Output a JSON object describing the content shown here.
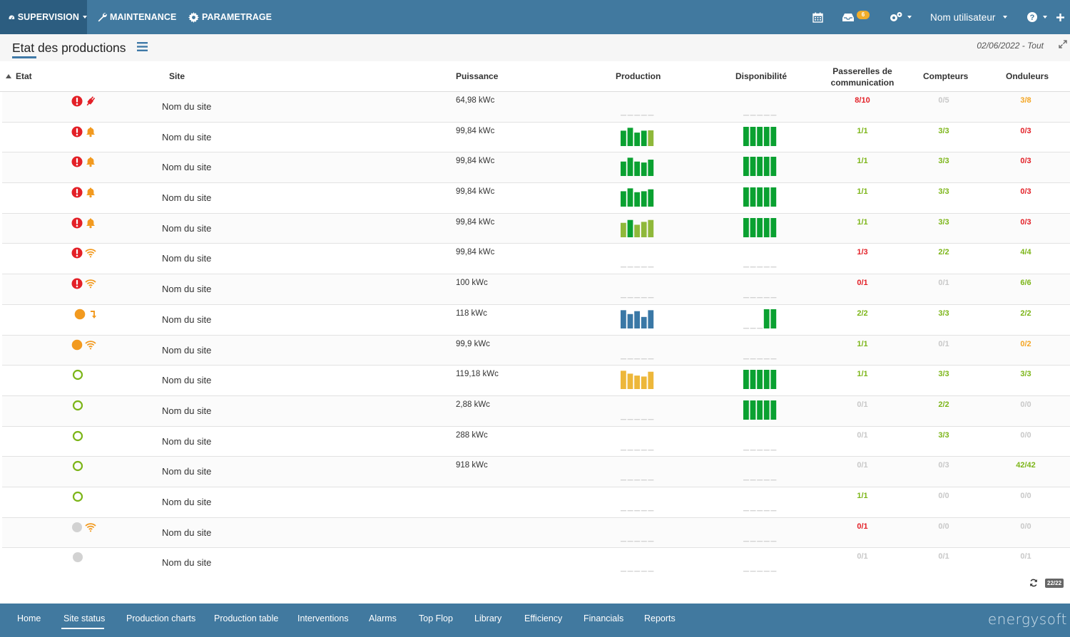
{
  "nav": {
    "supervision": "SUPERVISION",
    "maintenance": "MAINTENANCE",
    "parametrage": "PARAMETRAGE",
    "notif_count": "6",
    "username": "Nom utilisateur"
  },
  "header": {
    "title": "Etat des productions",
    "date_filter": "02/06/2022 - Tout"
  },
  "columns": {
    "etat": "Etat",
    "site": "Site",
    "puissance": "Puissance",
    "production": "Production",
    "disponibilite": "Disponibilité",
    "passerelles_l1": "Passerelles de",
    "passerelles_l2": "communication",
    "compteurs": "Compteurs",
    "onduleurs": "Onduleurs"
  },
  "colors": {
    "red": "#e32027",
    "orange": "#f29a1f",
    "green_text": "#7cb518",
    "grey_text": "#c8c8c8",
    "amber_text": "#f4a522",
    "bar_green": "#0aa131",
    "bar_olive": "#8fb83a",
    "bar_blue": "#3a78a6",
    "bar_yellow": "#edb73a"
  },
  "rows": [
    {
      "site": "Nom du site",
      "power": "64,98 kWc",
      "status": [
        "alert",
        "plug"
      ],
      "prod": null,
      "dispo": null,
      "passerelles": {
        "v": "8/10",
        "c": "red"
      },
      "compteurs": {
        "v": "0/5",
        "c": "grey"
      },
      "onduleurs": {
        "v": "3/8",
        "c": "amber"
      }
    },
    {
      "site": "Nom du site",
      "power": "99,84 kWc",
      "status": [
        "alert",
        "bell"
      ],
      "prod": {
        "v": [
          0.8,
          0.95,
          0.7,
          0.8,
          0.82
        ],
        "c": [
          "green",
          "green",
          "green",
          "green",
          "olive"
        ]
      },
      "dispo": {
        "v": [
          1,
          1,
          1,
          1,
          1
        ],
        "c": [
          "green",
          "green",
          "green",
          "green",
          "green"
        ]
      },
      "passerelles": {
        "v": "1/1",
        "c": "green"
      },
      "compteurs": {
        "v": "3/3",
        "c": "green"
      },
      "onduleurs": {
        "v": "0/3",
        "c": "red"
      }
    },
    {
      "site": "Nom du site",
      "power": "99,84 kWc",
      "status": [
        "alert",
        "bell"
      ],
      "prod": {
        "v": [
          0.75,
          0.95,
          0.75,
          0.7,
          0.85
        ],
        "c": [
          "green",
          "green",
          "green",
          "green",
          "green"
        ]
      },
      "dispo": {
        "v": [
          1,
          1,
          1,
          1,
          1
        ],
        "c": [
          "green",
          "green",
          "green",
          "green",
          "green"
        ]
      },
      "passerelles": {
        "v": "1/1",
        "c": "green"
      },
      "compteurs": {
        "v": "3/3",
        "c": "green"
      },
      "onduleurs": {
        "v": "0/3",
        "c": "red"
      }
    },
    {
      "site": "Nom du site",
      "power": "99,84 kWc",
      "status": [
        "alert",
        "bell"
      ],
      "prod": {
        "v": [
          0.8,
          0.95,
          0.75,
          0.8,
          0.9
        ],
        "c": [
          "green",
          "green",
          "green",
          "green",
          "green"
        ]
      },
      "dispo": {
        "v": [
          1,
          1,
          1,
          1,
          1
        ],
        "c": [
          "green",
          "green",
          "green",
          "green",
          "green"
        ]
      },
      "passerelles": {
        "v": "1/1",
        "c": "green"
      },
      "compteurs": {
        "v": "3/3",
        "c": "green"
      },
      "onduleurs": {
        "v": "0/3",
        "c": "red"
      }
    },
    {
      "site": "Nom du site",
      "power": "99,84 kWc",
      "status": [
        "alert",
        "bell"
      ],
      "prod": {
        "v": [
          0.75,
          0.9,
          0.65,
          0.8,
          0.9
        ],
        "c": [
          "olive",
          "green",
          "olive",
          "olive",
          "olive"
        ]
      },
      "dispo": {
        "v": [
          1,
          1,
          1,
          1,
          1
        ],
        "c": [
          "green",
          "green",
          "green",
          "green",
          "green"
        ]
      },
      "passerelles": {
        "v": "1/1",
        "c": "green"
      },
      "compteurs": {
        "v": "3/3",
        "c": "green"
      },
      "onduleurs": {
        "v": "0/3",
        "c": "red"
      }
    },
    {
      "site": "Nom du site",
      "power": "99,84 kWc",
      "status": [
        "alert",
        "wifi"
      ],
      "prod": null,
      "dispo": null,
      "passerelles": {
        "v": "1/3",
        "c": "red"
      },
      "compteurs": {
        "v": "2/2",
        "c": "green"
      },
      "onduleurs": {
        "v": "4/4",
        "c": "green"
      }
    },
    {
      "site": "Nom du site",
      "power": "100 kWc",
      "status": [
        "alert",
        "wifi"
      ],
      "prod": null,
      "dispo": null,
      "passerelles": {
        "v": "0/1",
        "c": "red"
      },
      "compteurs": {
        "v": "0/1",
        "c": "grey"
      },
      "onduleurs": {
        "v": "6/6",
        "c": "green"
      }
    },
    {
      "site": "Nom du site",
      "power": "118 kWc",
      "status": [
        "orange-dot",
        "arrow"
      ],
      "prod": {
        "v": [
          0.95,
          0.75,
          0.9,
          0.6,
          0.95
        ],
        "c": [
          "blue",
          "blue",
          "blue",
          "blue",
          "blue"
        ]
      },
      "dispo": {
        "v": [
          0,
          0,
          0,
          1,
          1
        ],
        "c": [
          "green",
          "green",
          "green",
          "green",
          "green"
        ]
      },
      "passerelles": {
        "v": "2/2",
        "c": "green"
      },
      "compteurs": {
        "v": "3/3",
        "c": "green"
      },
      "onduleurs": {
        "v": "2/2",
        "c": "green"
      }
    },
    {
      "site": "Nom du site",
      "power": "99,9 kWc",
      "status": [
        "orange-dot",
        "wifi"
      ],
      "prod": null,
      "dispo": null,
      "passerelles": {
        "v": "1/1",
        "c": "green"
      },
      "compteurs": {
        "v": "0/1",
        "c": "grey"
      },
      "onduleurs": {
        "v": "0/2",
        "c": "amber"
      }
    },
    {
      "site": "Nom du site",
      "power": "119,18 kWc",
      "status": [
        "green-ring"
      ],
      "prod": {
        "v": [
          0.95,
          0.8,
          0.7,
          0.65,
          0.9
        ],
        "c": [
          "yellow",
          "yellow",
          "yellow",
          "yellow",
          "yellow"
        ]
      },
      "dispo": {
        "v": [
          1,
          1,
          1,
          1,
          1
        ],
        "c": [
          "green",
          "green",
          "green",
          "green",
          "green"
        ]
      },
      "passerelles": {
        "v": "1/1",
        "c": "green"
      },
      "compteurs": {
        "v": "3/3",
        "c": "green"
      },
      "onduleurs": {
        "v": "3/3",
        "c": "green"
      }
    },
    {
      "site": "Nom du site",
      "power": "2,88 kWc",
      "status": [
        "green-ring"
      ],
      "prod": null,
      "dispo": {
        "v": [
          1,
          1,
          1,
          1,
          1
        ],
        "c": [
          "green",
          "green",
          "green",
          "green",
          "green"
        ]
      },
      "passerelles": {
        "v": "0/1",
        "c": "grey"
      },
      "compteurs": {
        "v": "2/2",
        "c": "green"
      },
      "onduleurs": {
        "v": "0/0",
        "c": "grey"
      }
    },
    {
      "site": "Nom du site",
      "power": "288 kWc",
      "status": [
        "green-ring"
      ],
      "prod": null,
      "dispo": null,
      "passerelles": {
        "v": "0/1",
        "c": "grey"
      },
      "compteurs": {
        "v": "3/3",
        "c": "green"
      },
      "onduleurs": {
        "v": "0/0",
        "c": "grey"
      }
    },
    {
      "site": "Nom du site",
      "power": "918 kWc",
      "status": [
        "green-ring"
      ],
      "prod": null,
      "dispo": null,
      "passerelles": {
        "v": "0/1",
        "c": "grey"
      },
      "compteurs": {
        "v": "0/3",
        "c": "grey"
      },
      "onduleurs": {
        "v": "42/42",
        "c": "green"
      }
    },
    {
      "site": "Nom du site",
      "power": "",
      "status": [
        "green-ring"
      ],
      "prod": null,
      "dispo": null,
      "passerelles": {
        "v": "1/1",
        "c": "green"
      },
      "compteurs": {
        "v": "0/0",
        "c": "grey"
      },
      "onduleurs": {
        "v": "0/0",
        "c": "grey"
      }
    },
    {
      "site": "Nom du site",
      "power": "",
      "status": [
        "grey-dot",
        "wifi"
      ],
      "prod": null,
      "dispo": null,
      "passerelles": {
        "v": "0/1",
        "c": "red"
      },
      "compteurs": {
        "v": "0/0",
        "c": "grey"
      },
      "onduleurs": {
        "v": "0/0",
        "c": "grey"
      }
    },
    {
      "site": "Nom du site",
      "power": "",
      "status": [
        "grey-dot"
      ],
      "prod": null,
      "dispo": null,
      "passerelles": {
        "v": "0/1",
        "c": "grey"
      },
      "compteurs": {
        "v": "0/1",
        "c": "grey"
      },
      "onduleurs": {
        "v": "0/1",
        "c": "grey"
      }
    }
  ],
  "pagination": {
    "count": "22/22"
  },
  "footer_tabs": [
    "Home",
    "Site status",
    "Production charts",
    "Production table",
    "Interventions",
    "Alarms",
    "Top Flop",
    "Library",
    "Efficiency",
    "Financials",
    "Reports"
  ],
  "active_tab": "Site status",
  "brand": "energysoft"
}
